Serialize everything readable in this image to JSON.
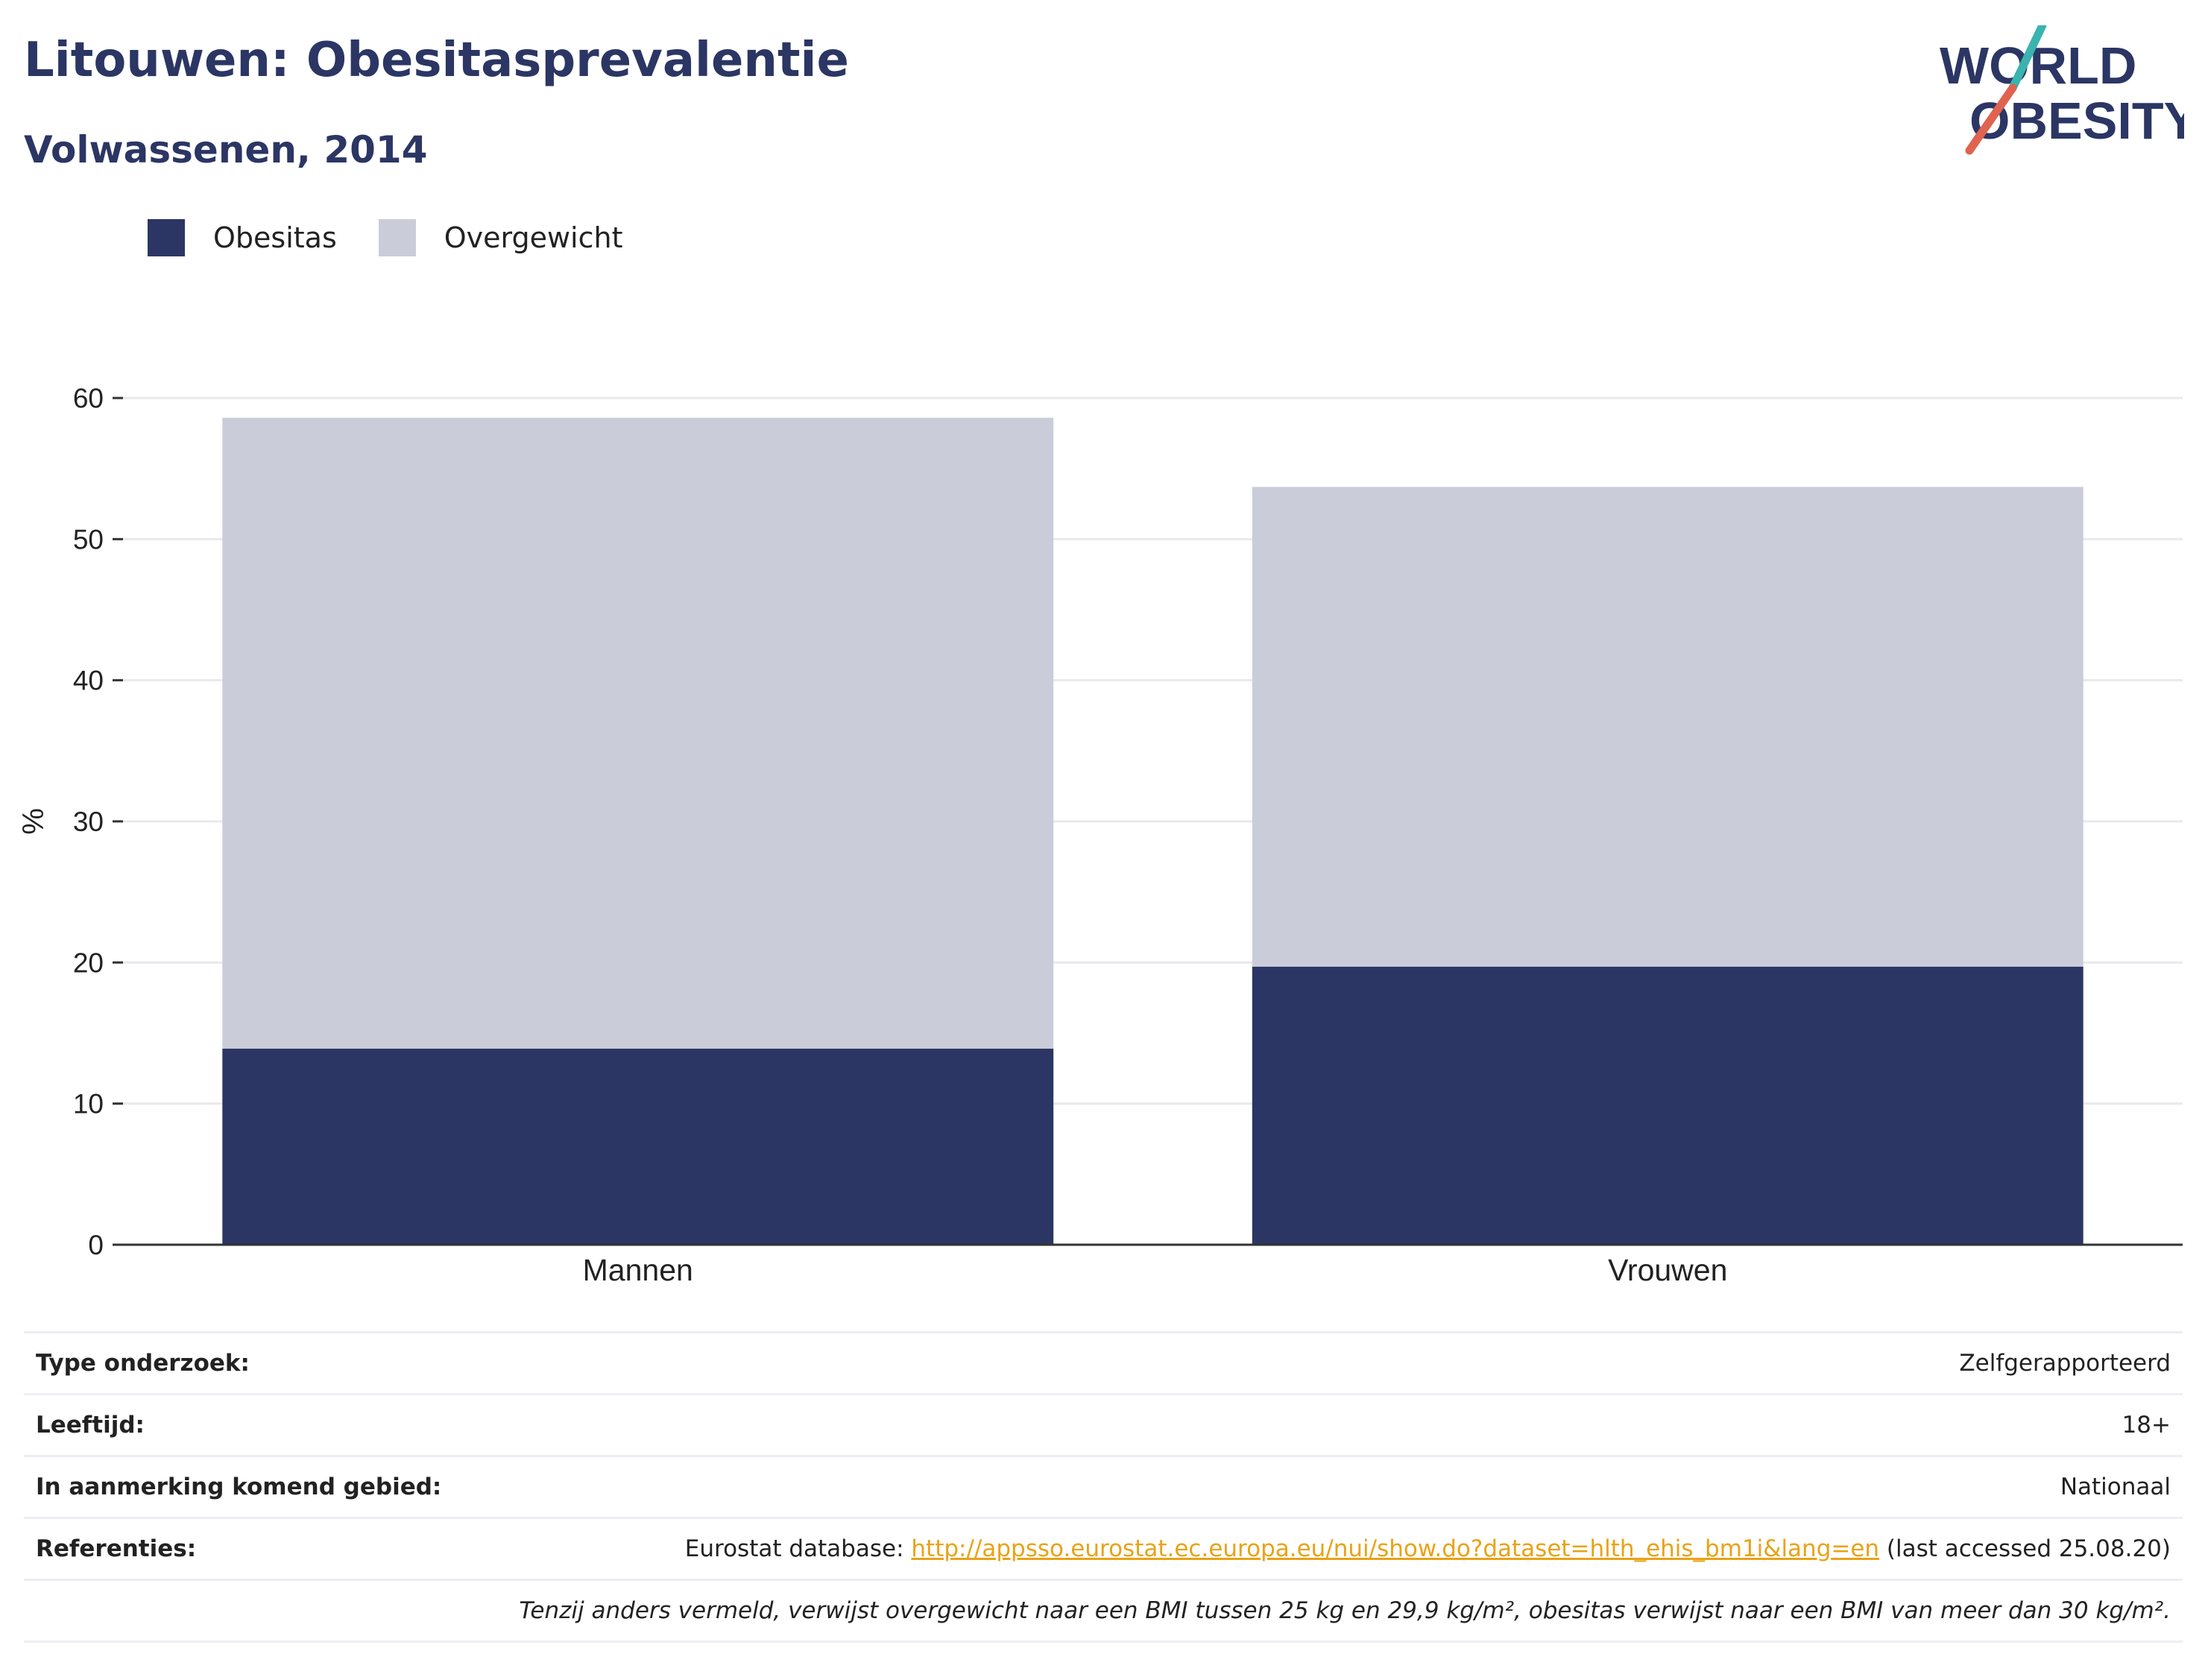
{
  "header": {
    "title": "Litouwen: Obesitasprevalentie",
    "subtitle": "Volwassenen, 2014"
  },
  "logo": {
    "line1": "WORLD",
    "line2": "OBESITY",
    "colors": {
      "text": "#2b3664",
      "slash_top": "#3bb3ae",
      "slash_bottom": "#e0634f"
    }
  },
  "legend": [
    {
      "label": "Obesitas",
      "color": "#2b3664"
    },
    {
      "label": "Overgewicht",
      "color": "#cacdd9"
    }
  ],
  "chart_data": {
    "type": "bar",
    "stacked": true,
    "categories": [
      "Mannen",
      "Vrouwen"
    ],
    "series": [
      {
        "name": "Obesitas",
        "color": "#2b3664",
        "values": [
          13.9,
          19.7
        ]
      },
      {
        "name": "Overgewicht",
        "color": "#cacdd9",
        "values": [
          44.7,
          34.0
        ]
      }
    ],
    "ylabel": "%",
    "ylim": [
      0,
      60
    ],
    "yticks": [
      0,
      10,
      20,
      30,
      40,
      50,
      60
    ],
    "grid": true,
    "legend_position": "top-left"
  },
  "info": {
    "rows": [
      {
        "key": "Type onderzoek:",
        "value": "Zelfgerapporteerd"
      },
      {
        "key": "Leeftijd:",
        "value": "18+"
      },
      {
        "key": "In aanmerking komend gebied:",
        "value": "Nationaal"
      }
    ],
    "references": {
      "key": "Referenties:",
      "prefix": "Eurostat database: ",
      "link": "http://appsso.eurostat.ec.europa.eu/nui/show.do?dataset=hlth_ehis_bm1i&lang=en",
      "suffix": " (last accessed 25.08.20)"
    },
    "footnote": "Tenzij anders vermeld, verwijst overgewicht naar een BMI tussen 25 kg en 29,9 kg/m², obesitas verwijst naar een BMI van meer dan 30 kg/m²."
  }
}
